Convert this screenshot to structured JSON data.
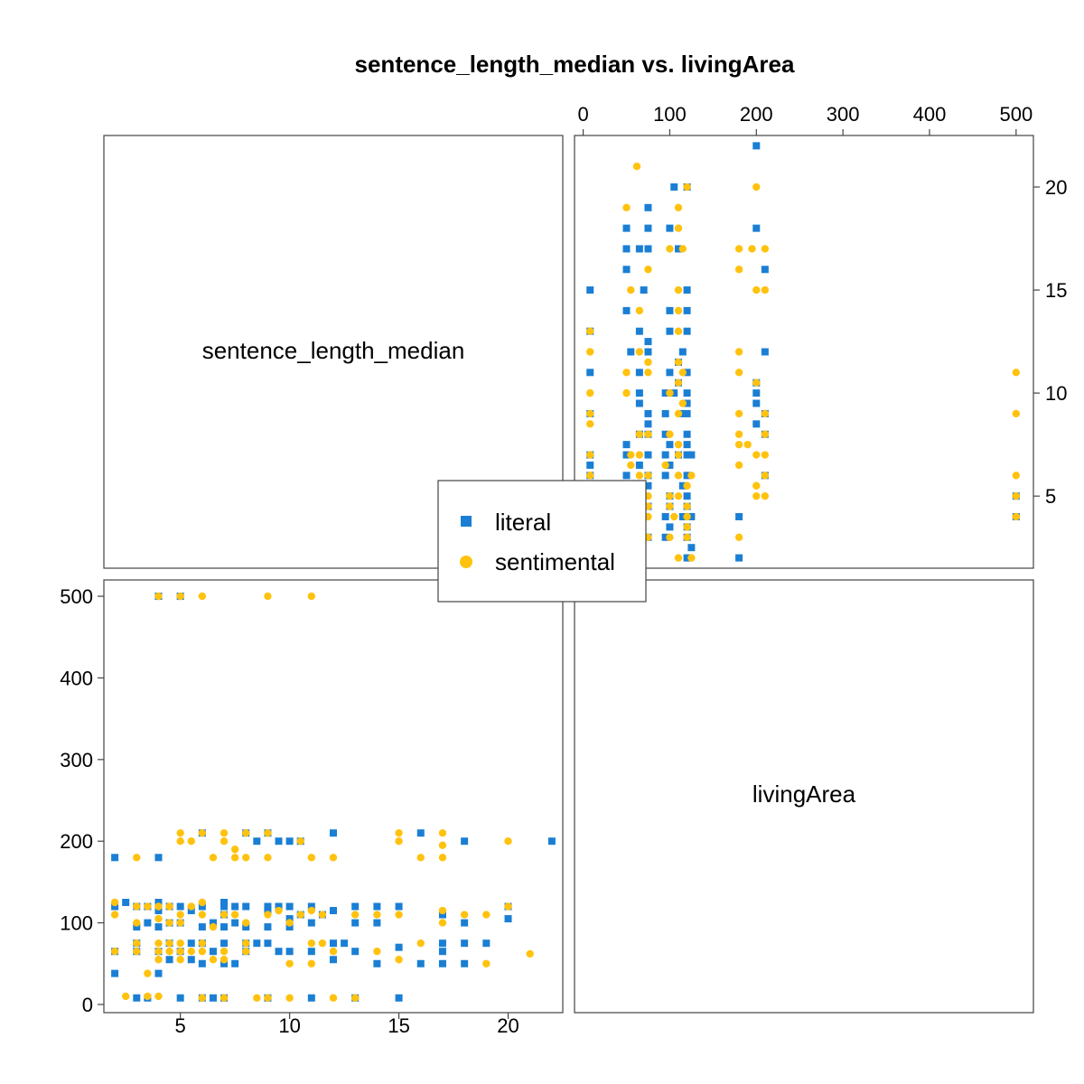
{
  "chart_data": {
    "type": "scatter",
    "title": "sentence_length_median vs. livingArea",
    "variables": [
      "sentence_length_median",
      "livingArea"
    ],
    "x_axis_sentence_length_median": {
      "range": [
        1.5,
        22.5
      ],
      "ticks": [
        5,
        10,
        15,
        20
      ]
    },
    "y_axis_livingArea": {
      "range": [
        -10,
        520
      ],
      "ticks": [
        0,
        100,
        200,
        300,
        400,
        500
      ]
    },
    "grid": false,
    "legend_position": "center",
    "series": [
      {
        "name": "literal",
        "color": "#1a7fd4",
        "marker": "square",
        "points": [
          [
            2,
            180
          ],
          [
            2,
            120
          ],
          [
            2,
            65
          ],
          [
            2,
            38
          ],
          [
            2.5,
            125
          ],
          [
            3,
            120
          ],
          [
            3,
            95
          ],
          [
            3,
            75
          ],
          [
            3,
            65
          ],
          [
            3,
            8
          ],
          [
            3.5,
            120
          ],
          [
            3.5,
            100
          ],
          [
            3.5,
            8
          ],
          [
            4,
            180
          ],
          [
            4,
            125
          ],
          [
            4,
            115
          ],
          [
            4,
            95
          ],
          [
            4,
            65
          ],
          [
            4,
            38
          ],
          [
            4,
            500
          ],
          [
            4.5,
            120
          ],
          [
            4.5,
            100
          ],
          [
            4.5,
            75
          ],
          [
            4.5,
            55
          ],
          [
            5,
            120
          ],
          [
            5,
            100
          ],
          [
            5,
            65
          ],
          [
            5,
            8
          ],
          [
            5,
            500
          ],
          [
            5.5,
            115
          ],
          [
            5.5,
            75
          ],
          [
            5.5,
            55
          ],
          [
            6,
            210
          ],
          [
            6,
            120
          ],
          [
            6,
            95
          ],
          [
            6,
            75
          ],
          [
            6,
            50
          ],
          [
            6,
            8
          ],
          [
            6.5,
            100
          ],
          [
            6.5,
            65
          ],
          [
            6.5,
            8
          ],
          [
            7,
            125
          ],
          [
            7,
            120
          ],
          [
            7,
            110
          ],
          [
            7,
            95
          ],
          [
            7,
            75
          ],
          [
            7,
            50
          ],
          [
            7,
            8
          ],
          [
            7.5,
            120
          ],
          [
            7.5,
            100
          ],
          [
            7.5,
            50
          ],
          [
            8,
            210
          ],
          [
            8,
            120
          ],
          [
            8,
            95
          ],
          [
            8,
            75
          ],
          [
            8,
            65
          ],
          [
            8.5,
            200
          ],
          [
            8.5,
            75
          ],
          [
            9,
            210
          ],
          [
            9,
            120
          ],
          [
            9,
            115
          ],
          [
            9,
            95
          ],
          [
            9,
            75
          ],
          [
            9,
            8
          ],
          [
            9.5,
            200
          ],
          [
            9.5,
            120
          ],
          [
            9.5,
            65
          ],
          [
            10,
            200
          ],
          [
            10,
            120
          ],
          [
            10,
            105
          ],
          [
            10,
            95
          ],
          [
            10,
            65
          ],
          [
            10.5,
            200
          ],
          [
            10.5,
            110
          ],
          [
            11,
            120
          ],
          [
            11,
            100
          ],
          [
            11,
            65
          ],
          [
            11,
            8
          ],
          [
            11.5,
            110
          ],
          [
            12,
            210
          ],
          [
            12,
            115
          ],
          [
            12,
            75
          ],
          [
            12,
            55
          ],
          [
            12.5,
            75
          ],
          [
            13,
            120
          ],
          [
            13,
            100
          ],
          [
            13,
            65
          ],
          [
            13,
            8
          ],
          [
            14,
            120
          ],
          [
            14,
            100
          ],
          [
            14,
            50
          ],
          [
            15,
            120
          ],
          [
            15,
            70
          ],
          [
            15,
            8
          ],
          [
            16,
            210
          ],
          [
            16,
            50
          ],
          [
            17,
            110
          ],
          [
            17,
            75
          ],
          [
            17,
            65
          ],
          [
            17,
            50
          ],
          [
            18,
            200
          ],
          [
            18,
            100
          ],
          [
            18,
            75
          ],
          [
            18,
            50
          ],
          [
            19,
            75
          ],
          [
            20,
            120
          ],
          [
            20,
            105
          ],
          [
            22,
            200
          ]
        ]
      },
      {
        "name": "sentimental",
        "color": "#ffc20e",
        "marker": "circle",
        "points": [
          [
            2,
            125
          ],
          [
            2,
            110
          ],
          [
            2,
            65
          ],
          [
            2.5,
            10
          ],
          [
            3,
            180
          ],
          [
            3,
            120
          ],
          [
            3,
            100
          ],
          [
            3,
            75
          ],
          [
            3,
            65
          ],
          [
            3.5,
            120
          ],
          [
            3.5,
            38
          ],
          [
            3.5,
            10
          ],
          [
            4,
            500
          ],
          [
            4,
            120
          ],
          [
            4,
            105
          ],
          [
            4,
            75
          ],
          [
            4,
            65
          ],
          [
            4,
            55
          ],
          [
            4,
            10
          ],
          [
            4.5,
            120
          ],
          [
            4.5,
            100
          ],
          [
            4.5,
            75
          ],
          [
            4.5,
            65
          ],
          [
            5,
            500
          ],
          [
            5,
            210
          ],
          [
            5,
            200
          ],
          [
            5,
            110
          ],
          [
            5,
            100
          ],
          [
            5,
            75
          ],
          [
            5,
            65
          ],
          [
            5,
            55
          ],
          [
            5.5,
            200
          ],
          [
            5.5,
            120
          ],
          [
            5.5,
            65
          ],
          [
            6,
            500
          ],
          [
            6,
            210
          ],
          [
            6,
            125
          ],
          [
            6,
            110
          ],
          [
            6,
            75
          ],
          [
            6,
            65
          ],
          [
            6,
            8
          ],
          [
            6.5,
            180
          ],
          [
            6.5,
            95
          ],
          [
            6.5,
            55
          ],
          [
            7,
            210
          ],
          [
            7,
            200
          ],
          [
            7,
            110
          ],
          [
            7,
            65
          ],
          [
            7,
            55
          ],
          [
            7,
            8
          ],
          [
            7.5,
            190
          ],
          [
            7.5,
            180
          ],
          [
            7.5,
            110
          ],
          [
            8,
            210
          ],
          [
            8,
            180
          ],
          [
            8,
            100
          ],
          [
            8,
            75
          ],
          [
            8,
            65
          ],
          [
            8.5,
            8
          ],
          [
            9,
            500
          ],
          [
            9,
            210
          ],
          [
            9,
            180
          ],
          [
            9,
            110
          ],
          [
            9,
            8
          ],
          [
            9.5,
            115
          ],
          [
            10,
            100
          ],
          [
            10,
            50
          ],
          [
            10,
            8
          ],
          [
            10.5,
            200
          ],
          [
            10.5,
            110
          ],
          [
            11,
            500
          ],
          [
            11,
            180
          ],
          [
            11,
            115
          ],
          [
            11,
            75
          ],
          [
            11,
            50
          ],
          [
            11.5,
            110
          ],
          [
            11.5,
            75
          ],
          [
            12,
            180
          ],
          [
            12,
            8
          ],
          [
            12,
            65
          ],
          [
            13,
            8
          ],
          [
            13,
            110
          ],
          [
            14,
            110
          ],
          [
            14,
            65
          ],
          [
            15,
            210
          ],
          [
            15,
            200
          ],
          [
            15,
            110
          ],
          [
            15,
            55
          ],
          [
            16,
            180
          ],
          [
            16,
            75
          ],
          [
            17,
            210
          ],
          [
            17,
            195
          ],
          [
            17,
            180
          ],
          [
            17,
            115
          ],
          [
            17,
            100
          ],
          [
            18,
            110
          ],
          [
            19,
            110
          ],
          [
            19,
            50
          ],
          [
            20,
            200
          ],
          [
            20,
            120
          ],
          [
            21,
            62
          ]
        ]
      }
    ]
  }
}
